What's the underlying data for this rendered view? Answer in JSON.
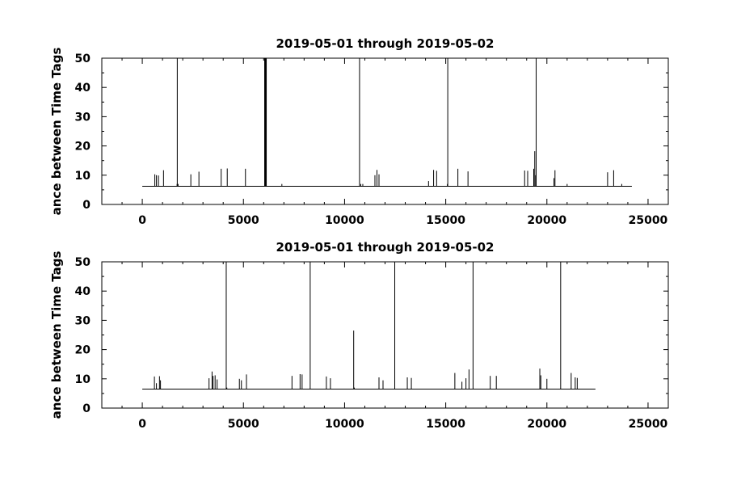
{
  "chart_data": [
    {
      "type": "line",
      "title": "2019-05-01 through 2019-05-02",
      "ylabel": "ance between Time Tags",
      "xlabel": "",
      "xlim": [
        -2000,
        26000
      ],
      "ylim": [
        0,
        50
      ],
      "xticks": [
        0,
        5000,
        10000,
        15000,
        20000,
        25000
      ],
      "xtick_labels": [
        "0",
        "5000",
        "10000",
        "15000",
        "20000",
        "25000"
      ],
      "yticks": [
        0,
        10,
        20,
        30,
        40,
        50
      ],
      "ytick_labels": [
        "0",
        "10",
        "20",
        "30",
        "40",
        "50"
      ],
      "grid": false,
      "baseline": {
        "x_start": 0,
        "x_end": 24200,
        "y": 6.2
      },
      "x": [
        0,
        620,
        700,
        800,
        1050,
        1720,
        1730,
        1770,
        2400,
        2800,
        3900,
        4200,
        5100,
        6050,
        6060,
        6080,
        6100,
        6120,
        6130,
        6900,
        10740,
        10800,
        10900,
        11500,
        11600,
        11700,
        14150,
        14400,
        14550,
        15080,
        15100,
        15600,
        16100,
        18900,
        19050,
        19350,
        19400,
        19450,
        19470,
        20350,
        20400,
        21000,
        23000,
        23300,
        23700,
        24200
      ],
      "y": [
        6.2,
        10.3,
        10.0,
        9.9,
        11.7,
        7.0,
        50,
        7.0,
        10.3,
        11.2,
        12.2,
        12.3,
        12.2,
        50,
        50,
        50,
        50,
        50,
        50,
        7.0,
        50,
        7.0,
        7.0,
        10.0,
        11.8,
        10.3,
        8.0,
        11.8,
        11.5,
        7.0,
        50,
        12.2,
        11.3,
        11.6,
        11.5,
        12.2,
        18.2,
        10.0,
        50,
        9.0,
        11.7,
        7.0,
        11.0,
        11.7,
        7.0,
        6.2
      ]
    },
    {
      "type": "line",
      "title": "2019-05-01 through 2019-05-02",
      "ylabel": "ance between Time Tags",
      "xlabel": "",
      "xlim": [
        -2000,
        26000
      ],
      "ylim": [
        0,
        50
      ],
      "xticks": [
        0,
        5000,
        10000,
        15000,
        20000,
        25000
      ],
      "xtick_labels": [
        "0",
        "5000",
        "10000",
        "15000",
        "20000",
        "25000"
      ],
      "yticks": [
        0,
        10,
        20,
        30,
        40,
        50
      ],
      "ytick_labels": [
        "0",
        "10",
        "20",
        "30",
        "40",
        "50"
      ],
      "grid": false,
      "baseline": {
        "x_start": 0,
        "x_end": 22400,
        "y": 6.5
      },
      "x": [
        0,
        600,
        700,
        850,
        900,
        3300,
        3450,
        3500,
        3600,
        3700,
        4150,
        4180,
        4800,
        4900,
        5150,
        7400,
        7800,
        7900,
        8300,
        9100,
        9300,
        10450,
        10480,
        11700,
        11900,
        12480,
        13100,
        13300,
        15450,
        15800,
        16000,
        16150,
        16350,
        17200,
        17500,
        19650,
        19700,
        20000,
        20680,
        21200,
        21400,
        21500,
        22400
      ],
      "y": [
        6.5,
        10.8,
        8.5,
        10.9,
        9.5,
        10.2,
        12.5,
        11.0,
        11.2,
        9.8,
        50,
        7.0,
        10.0,
        9.5,
        11.5,
        11.0,
        11.6,
        11.5,
        50,
        10.8,
        10.2,
        26.5,
        7.0,
        10.5,
        9.5,
        50,
        10.5,
        10.3,
        12.0,
        9.0,
        10.2,
        13.2,
        50,
        11.0,
        11.0,
        13.5,
        11.2,
        10.0,
        50,
        12.0,
        10.5,
        10.3,
        6.5
      ]
    }
  ]
}
